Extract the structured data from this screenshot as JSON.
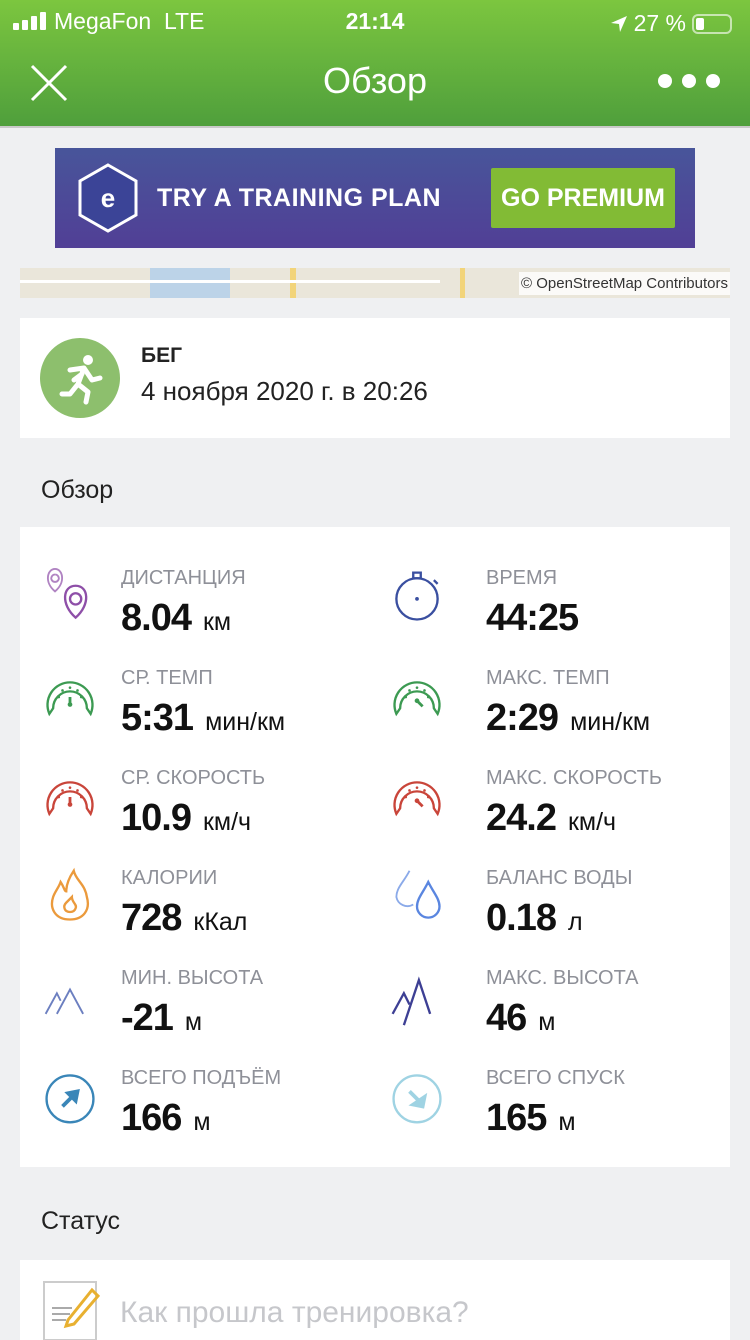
{
  "status_bar": {
    "carrier": "MegaFon",
    "network": "LTE",
    "time": "21:14",
    "battery": "27 %"
  },
  "header": {
    "title": "Обзор",
    "close_icon": "close-icon",
    "more_icon": "more-dots-icon"
  },
  "banner": {
    "text": "TRY A TRAINING PLAN",
    "button": "GO PREMIUM"
  },
  "map": {
    "attribution": "© OpenStreetMap Contributors"
  },
  "activity": {
    "type": "БЕГ",
    "date": "4 ноября 2020 г. в 20:26",
    "icon": "running-icon"
  },
  "overview": {
    "title": "Обзор",
    "metrics": [
      {
        "label": "ДИСТАНЦИЯ",
        "value": "8.04",
        "unit": "км",
        "icon": "distance-pins",
        "color": "#8e4fa8"
      },
      {
        "label": "ВРЕМЯ",
        "value": "44:25",
        "unit": "",
        "icon": "stopwatch",
        "color": "#3a4fa0"
      },
      {
        "label": "СР. ТЕМП",
        "value": "5:31",
        "unit": "мин/км",
        "icon": "gauge",
        "color": "#3c9a52"
      },
      {
        "label": "МАКС. ТЕМП",
        "value": "2:29",
        "unit": "мин/км",
        "icon": "gauge-max",
        "color": "#3c9a52"
      },
      {
        "label": "СР. СКОРОСТЬ",
        "value": "10.9",
        "unit": "км/ч",
        "icon": "gauge",
        "color": "#c9453a"
      },
      {
        "label": "МАКС. СКОРОСТЬ",
        "value": "24.2",
        "unit": "км/ч",
        "icon": "gauge-max",
        "color": "#c9453a"
      },
      {
        "label": "КАЛОРИИ",
        "value": "728",
        "unit": "кКал",
        "icon": "flame",
        "color": "#eb9a3c"
      },
      {
        "label": "БАЛАНС ВОДЫ",
        "value": "0.18",
        "unit": "л",
        "icon": "drops",
        "color": "#5a86e0"
      },
      {
        "label": "МИН. ВЫСОТА",
        "value": "-21",
        "unit": "м",
        "icon": "peaks-min",
        "color": "#6c7fc0"
      },
      {
        "label": "МАКС. ВЫСОТА",
        "value": "46",
        "unit": "м",
        "icon": "peaks-max",
        "color": "#3d3f94"
      },
      {
        "label": "ВСЕГО ПОДЪЁМ",
        "value": "166",
        "unit": "м",
        "icon": "ascent-arrow",
        "color": "#3a86b8"
      },
      {
        "label": "ВСЕГО СПУСК",
        "value": "165",
        "unit": "м",
        "icon": "descent-arrow",
        "color": "#9fd3e3"
      }
    ]
  },
  "status": {
    "title": "Статус",
    "placeholder": "Как прошла тренировка?"
  },
  "colors": {
    "header_green": "#5fb23d",
    "premium_green": "#82bb35",
    "banner_purple": "#4e4a97"
  }
}
